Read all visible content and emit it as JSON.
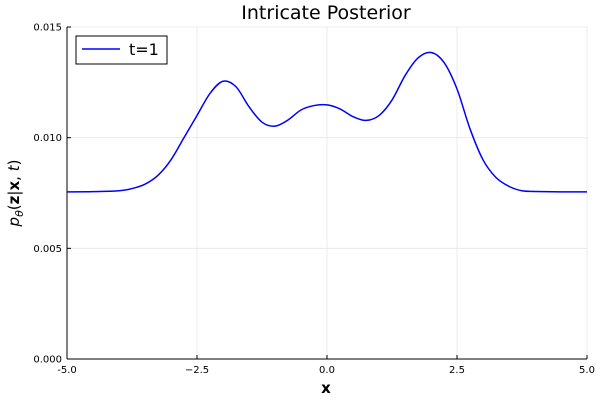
{
  "chart_data": {
    "type": "line",
    "title": "Intricate Posterior",
    "xlabel": "x",
    "ylabel_parts": [
      "p",
      "θ",
      "(",
      "z",
      "|",
      "x",
      ", ",
      "t",
      ")"
    ],
    "xlim": [
      -5,
      5
    ],
    "ylim": [
      0,
      0.015
    ],
    "x_ticks": [
      -5,
      -2.5,
      0,
      2.5,
      5
    ],
    "x_tick_labels": [
      "-5.0",
      "−2.5",
      "0.0",
      "2.5",
      "5.0"
    ],
    "y_ticks": [
      0,
      0.005,
      0.01,
      0.015
    ],
    "y_tick_labels": [
      "0.000",
      "0.005",
      "0.010",
      "0.015"
    ],
    "grid": true,
    "legend_position": "top-left",
    "series": [
      {
        "name": "t=1",
        "color": "#0000ff",
        "x": [
          -5.0,
          -4.5,
          -4.0,
          -3.75,
          -3.5,
          -3.25,
          -3.0,
          -2.75,
          -2.5,
          -2.25,
          -2.0,
          -1.75,
          -1.5,
          -1.25,
          -1.0,
          -0.75,
          -0.5,
          -0.25,
          0.0,
          0.25,
          0.5,
          0.75,
          1.0,
          1.25,
          1.5,
          1.75,
          2.0,
          2.25,
          2.5,
          2.75,
          3.0,
          3.25,
          3.5,
          3.75,
          4.0,
          4.5,
          5.0
        ],
        "y": [
          0.00755,
          0.00756,
          0.0076,
          0.0077,
          0.0079,
          0.0083,
          0.009,
          0.01,
          0.011,
          0.012,
          0.01255,
          0.0123,
          0.0114,
          0.0107,
          0.01052,
          0.0108,
          0.01125,
          0.01145,
          0.01148,
          0.0113,
          0.01095,
          0.01078,
          0.011,
          0.0117,
          0.0128,
          0.0136,
          0.01385,
          0.0134,
          0.0122,
          0.0104,
          0.009,
          0.0082,
          0.0078,
          0.0076,
          0.00757,
          0.00755,
          0.00755
        ]
      }
    ]
  }
}
